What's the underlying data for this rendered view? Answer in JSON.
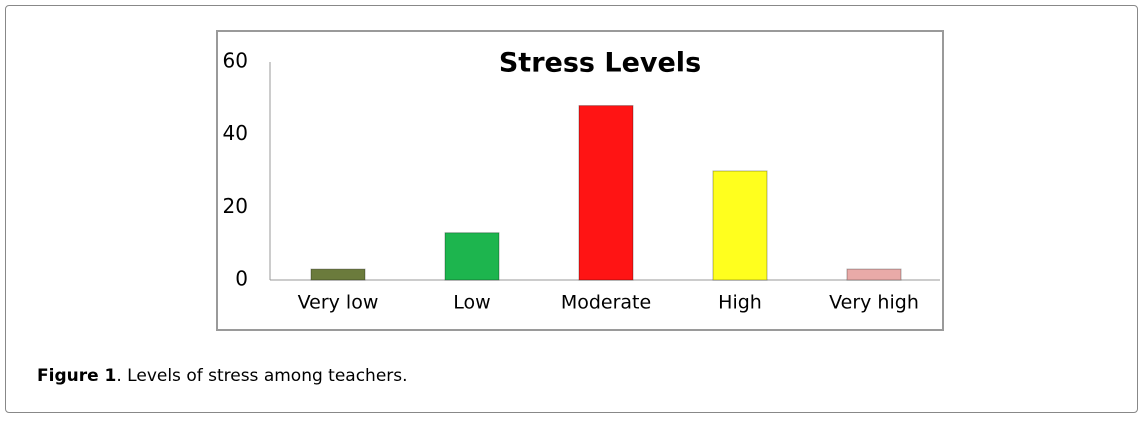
{
  "chart_data": {
    "type": "bar",
    "title": "Stress Levels",
    "categories": [
      "Very low",
      "Low",
      "Moderate",
      "High",
      "Very high"
    ],
    "values": [
      3,
      13,
      48,
      30,
      3
    ],
    "colors": [
      "#6b7b3c",
      "#1db54e",
      "#ff1414",
      "#ffff1e",
      "#e9aaa8"
    ],
    "ylim": [
      0,
      60
    ],
    "yticks": [
      0,
      20,
      40,
      60
    ],
    "grid": false
  },
  "caption": {
    "label": "Figure 1",
    "text": ". Levels of stress among teachers."
  }
}
